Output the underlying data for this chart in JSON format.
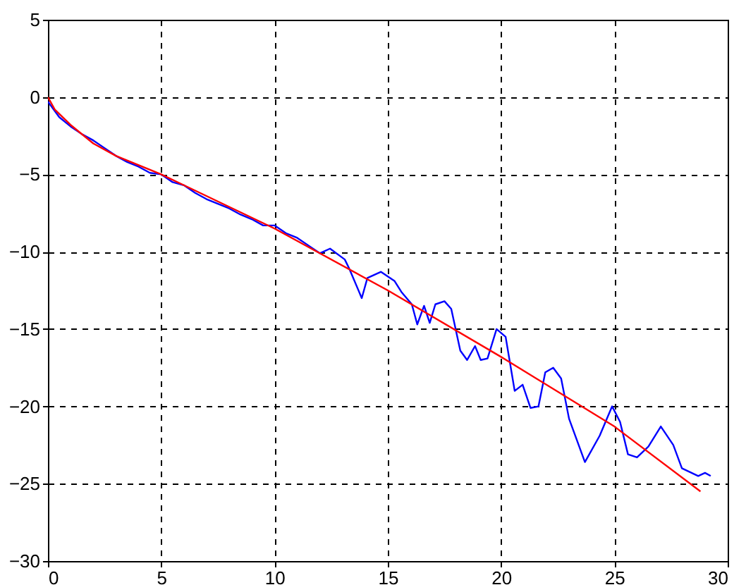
{
  "chart_data": {
    "type": "line",
    "xlim": [
      0,
      30
    ],
    "ylim": [
      -30,
      5
    ],
    "xticks": [
      0,
      5,
      10,
      15,
      20,
      25,
      30
    ],
    "yticks": [
      -30,
      -25,
      -20,
      -15,
      -10,
      -5,
      0,
      5
    ],
    "grid": true,
    "line_style": "solid",
    "marker": "none",
    "series": [
      {
        "color": "#0000ff",
        "x": [
          0,
          0.5,
          1,
          1.5,
          2,
          2.5,
          3,
          3.5,
          4,
          4.5,
          5,
          5.5,
          6,
          6.5,
          7,
          7.5,
          8,
          8.5,
          9,
          9.5,
          10,
          10.5,
          11,
          11.5,
          12,
          12.45,
          13.1,
          13.3,
          13.85,
          14.1,
          14.7,
          15.3,
          15.6,
          16.06,
          16.3,
          16.6,
          16.85,
          17.1,
          17.5,
          17.8,
          18.2,
          18.5,
          18.85,
          19.1,
          19.4,
          19.8,
          20.2,
          20.6,
          20.95,
          21.3,
          21.65,
          21.95,
          22.3,
          22.65,
          23.0,
          23.7,
          24.35,
          24.9,
          25.25,
          25.6,
          26.0,
          26.5,
          27.05,
          27.6,
          27.98,
          28.7,
          29.0,
          29.25
        ],
        "values": [
          -0.3,
          -1.3,
          -1.9,
          -2.4,
          -2.8,
          -3.3,
          -3.8,
          -4.2,
          -4.5,
          -4.9,
          -5.0,
          -5.5,
          -5.7,
          -6.2,
          -6.6,
          -6.9,
          -7.2,
          -7.6,
          -7.9,
          -8.3,
          -8.3,
          -8.8,
          -9.1,
          -9.6,
          -10.1,
          -9.8,
          -10.5,
          -11.1,
          -13.0,
          -11.7,
          -11.3,
          -11.9,
          -12.6,
          -13.4,
          -14.7,
          -13.5,
          -14.6,
          -13.4,
          -13.2,
          -13.7,
          -16.4,
          -17.0,
          -16.1,
          -17.0,
          -16.9,
          -15.0,
          -15.5,
          -19.0,
          -18.6,
          -20.1,
          -20.0,
          -17.8,
          -17.5,
          -18.2,
          -20.8,
          -23.6,
          -21.9,
          -20.0,
          -21.0,
          -23.1,
          -23.3,
          -22.6,
          -21.3,
          -22.5,
          -24.0,
          -24.5,
          -24.3,
          -24.5
        ]
      },
      {
        "color": "#ff0000",
        "x": [
          0,
          0.3,
          1,
          2,
          3,
          5,
          10,
          15,
          20,
          25,
          28.8
        ],
        "values": [
          0,
          -0.8,
          -1.8,
          -3.0,
          -3.8,
          -5.0,
          -8.5,
          -12.5,
          -16.8,
          -21.3,
          -25.5
        ]
      }
    ]
  }
}
